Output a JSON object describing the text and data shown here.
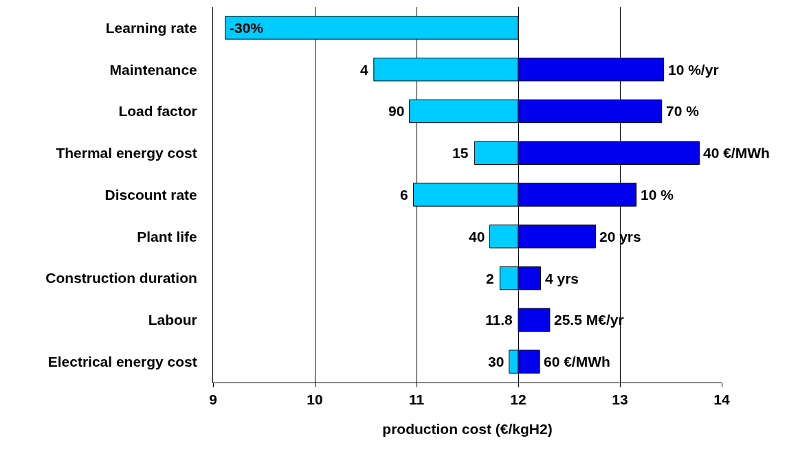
{
  "chart_data": {
    "type": "bar",
    "orientation": "horizontal",
    "xlabel": "production cost (€/kgH2)",
    "categories": [
      "Learning rate",
      "Maintenance",
      "Load factor",
      "Thermal energy cost",
      "Discount rate",
      "Plant life",
      "Construction duration",
      "Labour",
      "Electrical energy cost"
    ],
    "series": [
      {
        "color": "#00ccff",
        "base": [
          12,
          12,
          12,
          12,
          12,
          12,
          12,
          null,
          12
        ],
        "values": [
          -2.88,
          -1.42,
          -1.07,
          -0.43,
          -1.03,
          -0.28,
          -0.18,
          null,
          -0.09
        ]
      },
      {
        "color": "#0000ee",
        "base": [
          null,
          12,
          12,
          12,
          12,
          12,
          12,
          12,
          12
        ],
        "values": [
          null,
          1.43,
          1.41,
          1.78,
          1.16,
          0.76,
          0.22,
          0.31,
          0.21
        ]
      }
    ],
    "annotations": [
      {
        "text": "-30%",
        "x": 9.12,
        "y": "Learning rate"
      },
      {
        "text": "4",
        "x": 10.58,
        "y": "Maintenance"
      },
      {
        "text": "10 %/yr",
        "x": 13.43,
        "y": "Maintenance"
      },
      {
        "text": "90",
        "x": 10.93,
        "y": "Load factor"
      },
      {
        "text": "70 %",
        "x": 13.41,
        "y": "Load factor"
      },
      {
        "text": "15",
        "x": 11.57,
        "y": "Thermal energy cost"
      },
      {
        "text": "40 €/MWh",
        "x": 13.78,
        "y": "Thermal energy cost"
      },
      {
        "text": "6",
        "x": 10.97,
        "y": "Discount rate"
      },
      {
        "text": "10 %",
        "x": 13.16,
        "y": "Discount rate"
      },
      {
        "text": "40",
        "x": 11.72,
        "y": "Plant life"
      },
      {
        "text": "20 yrs",
        "x": 12.76,
        "y": "Plant life"
      },
      {
        "text": "2",
        "x": 11.82,
        "y": "Construction duration"
      },
      {
        "text": "4 yrs",
        "x": 12.22,
        "y": "Construction duration"
      },
      {
        "text": "11.8",
        "x": 12,
        "y": "Labour"
      },
      {
        "text": "25.5 M€/yr",
        "x": 12.31,
        "y": "Labour"
      },
      {
        "text": "30",
        "x": 11.91,
        "y": "Electrical energy cost"
      },
      {
        "text": "60 €/MWh",
        "x": 12.21,
        "y": "Electrical energy cost"
      }
    ],
    "xlim": [
      9,
      14
    ],
    "xticks": [
      9,
      10,
      11,
      12,
      13,
      14
    ],
    "grid": "x"
  }
}
